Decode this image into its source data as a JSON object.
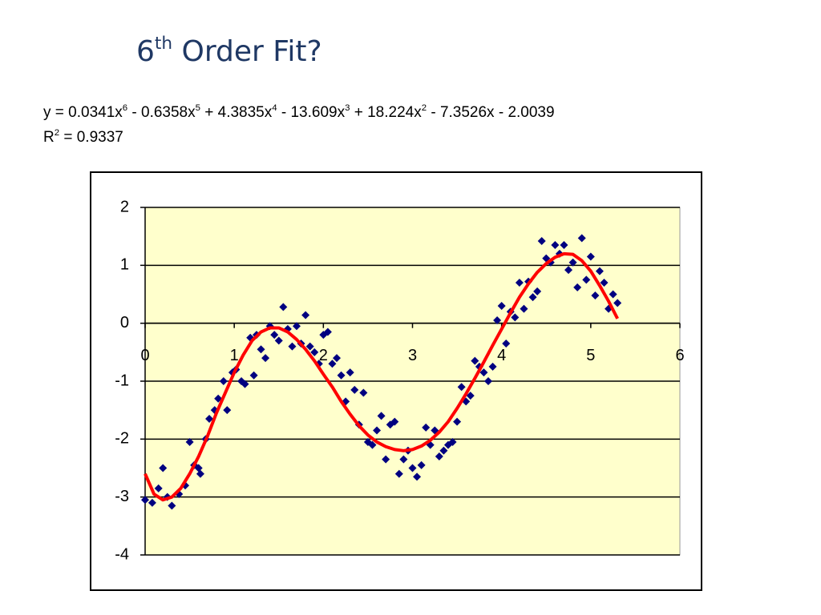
{
  "slide": {
    "title": [
      "6",
      "th",
      " Order Fit?"
    ],
    "equation": [
      "y = 0.0341x",
      "6",
      " - 0.6358x",
      "5",
      " + 4.3835x",
      "4",
      " - 13.609x",
      "3",
      " + 18.224x",
      "2",
      " - 7.3526x - 2.0039"
    ],
    "r_squared": [
      "R",
      "2",
      " = 0.9337"
    ]
  },
  "chart_data": {
    "type": "scatter",
    "xlim": [
      0,
      6
    ],
    "xticks": [
      0,
      1,
      2,
      3,
      4,
      5,
      6
    ],
    "ylim": [
      -4,
      2
    ],
    "yticks": [
      -4,
      -3,
      -2,
      -1,
      0,
      1,
      2
    ],
    "grid": true,
    "plot_background": "#ffffcc",
    "series": [
      {
        "type": "scatter",
        "color": "#000080",
        "x": [
          0,
          0.08,
          0.15,
          0.2,
          0.25,
          0.3,
          0.38,
          0.45,
          0.5,
          0.55,
          0.6,
          0.62,
          0.68,
          0.72,
          0.78,
          0.82,
          0.88,
          0.92,
          0.98,
          1.02,
          1.08,
          1.12,
          1.18,
          1.22,
          1.25,
          1.3,
          1.35,
          1.4,
          1.45,
          1.5,
          1.55,
          1.6,
          1.65,
          1.7,
          1.75,
          1.8,
          1.85,
          1.9,
          1.95,
          2.0,
          2.05,
          2.1,
          2.15,
          2.2,
          2.25,
          2.3,
          2.35,
          2.4,
          2.45,
          2.5,
          2.55,
          2.6,
          2.65,
          2.7,
          2.75,
          2.8,
          2.85,
          2.9,
          2.95,
          3.0,
          3.05,
          3.1,
          3.15,
          3.2,
          3.25,
          3.3,
          3.35,
          3.4,
          3.45,
          3.5,
          3.55,
          3.6,
          3.65,
          3.7,
          3.75,
          3.8,
          3.85,
          3.9,
          3.95,
          4.0,
          4.05,
          4.1,
          4.15,
          4.2,
          4.25,
          4.3,
          4.35,
          4.4,
          4.45,
          4.5,
          4.55,
          4.6,
          4.65,
          4.7,
          4.75,
          4.8,
          4.85,
          4.9,
          4.95,
          5.0,
          5.05,
          5.1,
          5.15,
          5.2,
          5.25,
          5.3
        ],
        "values": [
          -3.05,
          -3.1,
          -2.85,
          -2.5,
          -3.0,
          -3.15,
          -2.95,
          -2.8,
          -2.05,
          -2.45,
          -2.5,
          -2.6,
          -2.0,
          -1.65,
          -1.5,
          -1.3,
          -1.0,
          -1.5,
          -0.85,
          -0.8,
          -1.0,
          -1.05,
          -0.25,
          -0.9,
          -0.2,
          -0.45,
          -0.6,
          -0.05,
          -0.2,
          -0.3,
          0.28,
          -0.1,
          -0.4,
          -0.05,
          -0.35,
          0.14,
          -0.4,
          -0.5,
          -0.7,
          -0.2,
          -0.15,
          -0.7,
          -0.6,
          -0.9,
          -1.35,
          -0.85,
          -1.15,
          -1.75,
          -1.2,
          -2.05,
          -2.1,
          -1.85,
          -1.6,
          -2.35,
          -1.75,
          -1.7,
          -2.6,
          -2.35,
          -2.2,
          -2.5,
          -2.65,
          -2.45,
          -1.8,
          -2.1,
          -1.85,
          -2.3,
          -2.2,
          -2.1,
          -2.05,
          -1.7,
          -1.1,
          -1.35,
          -1.25,
          -0.65,
          -0.75,
          -0.85,
          -1.0,
          -0.75,
          0.05,
          0.3,
          -0.35,
          0.2,
          0.1,
          0.7,
          0.25,
          0.72,
          0.45,
          0.55,
          1.42,
          1.12,
          1.05,
          1.35,
          1.2,
          1.35,
          0.92,
          1.05,
          0.62,
          1.47,
          0.75,
          1.15,
          0.48,
          0.9,
          0.7,
          0.25,
          0.5,
          0.35
        ]
      },
      {
        "type": "line",
        "color": "#ff0000",
        "x": [
          0,
          0.1,
          0.2,
          0.3,
          0.4,
          0.5,
          0.6,
          0.7,
          0.8,
          0.9,
          1.0,
          1.1,
          1.2,
          1.3,
          1.4,
          1.5,
          1.6,
          1.7,
          1.8,
          1.9,
          2.0,
          2.1,
          2.2,
          2.3,
          2.4,
          2.5,
          2.6,
          2.7,
          2.8,
          2.9,
          3.0,
          3.1,
          3.2,
          3.3,
          3.4,
          3.5,
          3.6,
          3.7,
          3.8,
          3.9,
          4.0,
          4.1,
          4.2,
          4.3,
          4.4,
          4.5,
          4.6,
          4.7,
          4.8,
          4.9,
          5.0,
          5.1,
          5.2,
          5.3
        ],
        "values": [
          -2.6,
          -2.95,
          -3.05,
          -3.0,
          -2.85,
          -2.6,
          -2.3,
          -1.95,
          -1.55,
          -1.2,
          -0.85,
          -0.55,
          -0.3,
          -0.15,
          -0.08,
          -0.08,
          -0.15,
          -0.28,
          -0.45,
          -0.65,
          -0.88,
          -1.1,
          -1.35,
          -1.57,
          -1.77,
          -1.93,
          -2.05,
          -2.13,
          -2.18,
          -2.2,
          -2.18,
          -2.12,
          -2.02,
          -1.88,
          -1.7,
          -1.47,
          -1.22,
          -0.95,
          -0.67,
          -0.38,
          -0.1,
          0.18,
          0.45,
          0.68,
          0.88,
          1.03,
          1.14,
          1.2,
          1.19,
          1.08,
          0.9,
          0.65,
          0.38,
          0.08
        ]
      }
    ]
  }
}
